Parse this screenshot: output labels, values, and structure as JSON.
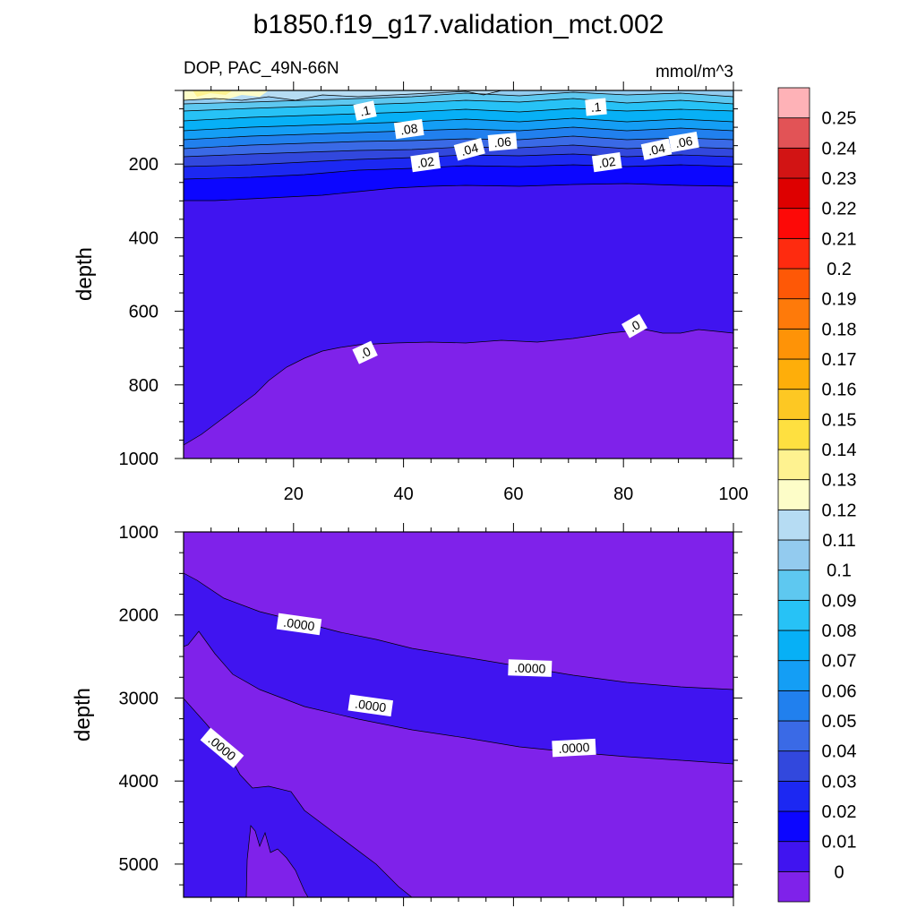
{
  "title": "b1850.f19_g17.validation_mct.002",
  "chart_data": [
    {
      "type": "contour",
      "panel": "upper",
      "subtitle_left": "DOP, PAC_49N-66N",
      "subtitle_right": "mmol/m^3",
      "ylabel": "depth",
      "xlim": [
        0,
        100
      ],
      "ylim": [
        0,
        1000
      ],
      "y_reversed": true,
      "xticks": [
        "20",
        "40",
        "60",
        "80",
        "100"
      ],
      "yticks": [
        "200",
        "400",
        "600",
        "800",
        "1000"
      ],
      "contour_labels": [
        {
          "text": ".1",
          "x": 33,
          "y": 55,
          "rot": -12
        },
        {
          "text": ".08",
          "x": 41,
          "y": 105,
          "rot": -8
        },
        {
          "text": ".06",
          "x": 58,
          "y": 140,
          "rot": -5
        },
        {
          "text": ".04",
          "x": 52,
          "y": 160,
          "rot": -15
        },
        {
          "text": ".02",
          "x": 44,
          "y": 195,
          "rot": -8
        },
        {
          "text": ".1",
          "x": 75,
          "y": 45,
          "rot": -5
        },
        {
          "text": ".06",
          "x": 91,
          "y": 140,
          "rot": -10
        },
        {
          "text": ".04",
          "x": 86,
          "y": 160,
          "rot": -12
        },
        {
          "text": ".02",
          "x": 77,
          "y": 195,
          "rot": -8
        },
        {
          "text": ".0",
          "x": 33,
          "y": 712,
          "rot": -25
        },
        {
          "text": ".0",
          "x": 82,
          "y": 640,
          "rot": -30
        }
      ]
    },
    {
      "type": "contour",
      "panel": "lower",
      "ylabel": "depth",
      "xlim": [
        0,
        100
      ],
      "ylim": [
        1000,
        5400
      ],
      "y_reversed": true,
      "yticks": [
        "1000",
        "2000",
        "3000",
        "4000",
        "5000"
      ],
      "contour_labels": [
        {
          "text": ".0000",
          "x": 21,
          "y": 2110,
          "rot": 8
        },
        {
          "text": ".0000",
          "x": 63,
          "y": 2640,
          "rot": 2
        },
        {
          "text": ".0000",
          "x": 34,
          "y": 3090,
          "rot": 8
        },
        {
          "text": ".0000",
          "x": 71,
          "y": 3600,
          "rot": -3
        },
        {
          "text": ".0000",
          "x": 7,
          "y": 3600,
          "rot": 40
        }
      ]
    }
  ],
  "colorbar": {
    "labels": [
      "0",
      "0.01",
      "0.02",
      "0.03",
      "0.04",
      "0.05",
      "0.06",
      "0.07",
      "0.08",
      "0.09",
      "0.1",
      "0.11",
      "0.12",
      "0.13",
      "0.14",
      "0.15",
      "0.16",
      "0.17",
      "0.18",
      "0.19",
      "0.2",
      "0.21",
      "0.22",
      "0.23",
      "0.24",
      "0.25"
    ],
    "colors": [
      "#7f22ea",
      "#4014f0",
      "#0c06ff",
      "#1c28f2",
      "#3248dd",
      "#3a6ae6",
      "#2180ee",
      "#149ef5",
      "#07b0f6",
      "#27c2f6",
      "#5ec8f0",
      "#93cbef",
      "#b6dcf3",
      "#fdfdc8",
      "#fef290",
      "#fee040",
      "#fdc823",
      "#feae0a",
      "#fe9307",
      "#fe7a0a",
      "#fe5806",
      "#fe2b0f",
      "#fd0907",
      "#de0000",
      "#d21414",
      "#e25356",
      "#feb2b7"
    ]
  }
}
